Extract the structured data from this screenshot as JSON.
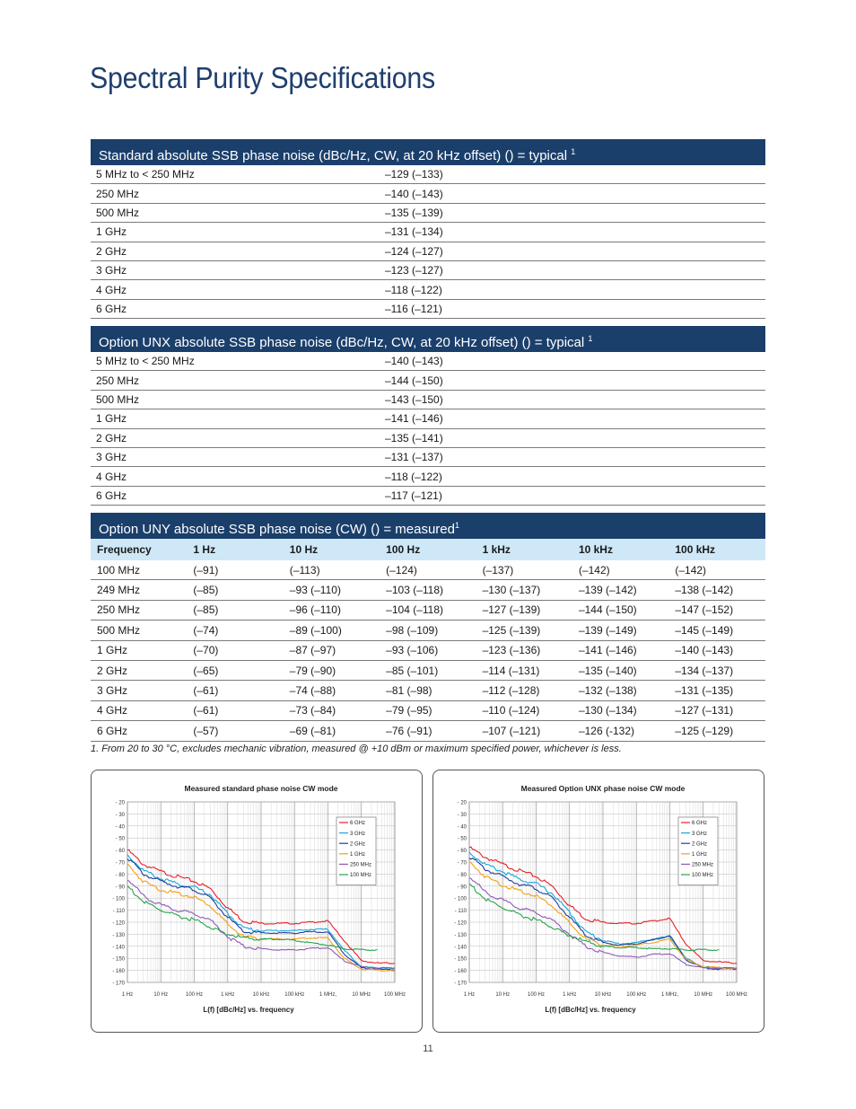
{
  "page_title": "Spectral Purity Specifications",
  "standard": {
    "heading": "Standard absolute SSB phase noise (dBc/Hz, CW, at 20 kHz offset) () = typical",
    "sup": "1",
    "rows": [
      {
        "freq": "5 MHz to < 250 MHz",
        "value": "–129 (–133)"
      },
      {
        "freq": "250 MHz",
        "value": "–140 (–143)"
      },
      {
        "freq": "500 MHz",
        "value": "–135 (–139)"
      },
      {
        "freq": "1 GHz",
        "value": "–131 (–134)"
      },
      {
        "freq": "2 GHz",
        "value": "–124 (–127)"
      },
      {
        "freq": "3 GHz",
        "value": "–123 (–127)"
      },
      {
        "freq": "4 GHz",
        "value": "–118 (–122)"
      },
      {
        "freq": "6 GHz",
        "value": "–116 (–121)"
      }
    ]
  },
  "unx": {
    "heading": "Option UNX absolute SSB phase noise (dBc/Hz, CW, at 20 kHz offset) () = typical",
    "sup": "1",
    "rows": [
      {
        "freq": "5 MHz to < 250 MHz",
        "value": "–140 (–143)"
      },
      {
        "freq": "250 MHz",
        "value": "–144 (–150)"
      },
      {
        "freq": "500 MHz",
        "value": "–143 (–150)"
      },
      {
        "freq": "1 GHz",
        "value": "–141 (–146)"
      },
      {
        "freq": "2 GHz",
        "value": "–135 (–141)"
      },
      {
        "freq": "3 GHz",
        "value": "–131 (–137)"
      },
      {
        "freq": "4 GHz",
        "value": "–118 (–122)"
      },
      {
        "freq": "6 GHz",
        "value": "–117 (–121)"
      }
    ]
  },
  "uny": {
    "heading": "Option UNY absolute SSB phase noise (CW)  () = measured",
    "sup": "1",
    "columns": [
      "Frequency",
      "1 Hz",
      "10 Hz",
      "100 Hz",
      "1 kHz",
      "10 kHz",
      "100 kHz"
    ],
    "rows": [
      [
        "100 MHz",
        "(–91)",
        "(–113)",
        "(–124)",
        "(–137)",
        "(–142)",
        "(–142)"
      ],
      [
        "249 MHz",
        "(–85)",
        "–93 (–110)",
        "–103 (–118)",
        "–130 (–137)",
        "–139 (–142)",
        "–138 (–142)"
      ],
      [
        "250 MHz",
        "(–85)",
        "–96 (–110)",
        "–104 (–118)",
        "–127 (–139)",
        "–144 (–150)",
        "–147 (–152)"
      ],
      [
        "500 MHz",
        "(–74)",
        "–89 (–100)",
        "–98 (–109)",
        "–125 (–139)",
        "–139 (–149)",
        "–145 (–149)"
      ],
      [
        "1 GHz",
        "(–70)",
        "–87 (–97)",
        "–93 (–106)",
        "–123 (–136)",
        "–141 (–146)",
        "–140 (–143)"
      ],
      [
        "2 GHz",
        "(–65)",
        "–79 (–90)",
        "–85 (–101)",
        "–114 (–131)",
        "–135 (–140)",
        "–134 (–137)"
      ],
      [
        "3 GHz",
        "(–61)",
        "–74 (–88)",
        "–81 (–98)",
        "–112 (–128)",
        "–132 (–138)",
        "–131 (–135)"
      ],
      [
        "4 GHz",
        "(–61)",
        "–73 (–84)",
        "–79 (–95)",
        "–110 (–124)",
        "–130 (–134)",
        "–127 (–131)"
      ],
      [
        "6 GHz",
        "(–57)",
        "–69 (–81)",
        "–76 (–91)",
        "–107 (–121)",
        "–126 (-132)",
        "–125 (–129)"
      ]
    ]
  },
  "footnote": "1.   From 20 to 30 °C, excludes mechanic vibration, measured @ +10 dBm or maximum specified power, whichever is less.",
  "page_number": "11",
  "colors": {
    "heading_bg": "#1b3f6b",
    "colhead_bg": "#cfe8f7",
    "title": "#1f3f6e"
  },
  "chart_data": [
    {
      "type": "line",
      "title": "Measured standard phase noise CW mode",
      "xlabel": "L(f) [dBc/Hz] vs. frequency",
      "ylabel": "",
      "x_scale": "log",
      "xlim": [
        1,
        100000000
      ],
      "ylim": [
        -170,
        -20
      ],
      "x_ticks": [
        "1 Hz",
        "10 Hz",
        "100 Hz",
        "1 kHz",
        "10 kHz",
        "100 kHz",
        "1 MHz,",
        "10 MHz",
        "100 MHz"
      ],
      "y_ticks": [
        "- 20",
        "- 30",
        "- 40",
        "- 50",
        "- 60",
        "- 70",
        "- 80",
        "- 90",
        "- 100",
        "- 110",
        "- 120",
        "- 130",
        "- 140",
        "- 150",
        "- 160",
        "- 170"
      ],
      "grid": true,
      "legend_position": "top-right",
      "series": [
        {
          "name": "6 GHz",
          "color": "#e8202a",
          "x": [
            1,
            3,
            10,
            30,
            100,
            300,
            1000,
            3000,
            10000,
            30000,
            100000,
            300000,
            1000000,
            3000000,
            10000000,
            30000000,
            100000000
          ],
          "y": [
            -60,
            -72,
            -78,
            -82,
            -86,
            -92,
            -108,
            -119,
            -121,
            -121,
            -121,
            -120,
            -119,
            -135,
            -152,
            -154,
            -154
          ]
        },
        {
          "name": "3 GHz",
          "color": "#19a7dc",
          "x": [
            1,
            3,
            10,
            30,
            100,
            300,
            1000,
            3000,
            10000,
            30000,
            100000,
            300000,
            1000000,
            3000000,
            10000000,
            30000000,
            100000000
          ],
          "y": [
            -64,
            -77,
            -84,
            -88,
            -91,
            -97,
            -113,
            -125,
            -127,
            -127,
            -127,
            -126,
            -126,
            -143,
            -157,
            -158,
            -159
          ]
        },
        {
          "name": "2 GHz",
          "color": "#1f3f9a",
          "x": [
            1,
            3,
            10,
            30,
            100,
            300,
            1000,
            3000,
            10000,
            30000,
            100000,
            300000,
            1000000,
            3000000,
            10000000,
            30000000,
            100000000
          ],
          "y": [
            -66,
            -80,
            -86,
            -90,
            -93,
            -100,
            -116,
            -128,
            -129,
            -129,
            -129,
            -128,
            -128,
            -146,
            -158,
            -159,
            -160
          ]
        },
        {
          "name": "1 GHz",
          "color": "#f5a012",
          "x": [
            1,
            3,
            10,
            30,
            100,
            300,
            1000,
            3000,
            10000,
            30000,
            100000,
            300000,
            1000000,
            3000000,
            10000000,
            30000000,
            100000000
          ],
          "y": [
            -72,
            -86,
            -93,
            -96,
            -99,
            -106,
            -122,
            -132,
            -134,
            -134,
            -134,
            -133,
            -133,
            -150,
            -159,
            -160,
            -160
          ]
        },
        {
          "name": "250 MHz",
          "color": "#8e5ab8",
          "x": [
            1,
            3,
            10,
            30,
            100,
            300,
            1000,
            3000,
            10000,
            30000,
            100000,
            300000,
            1000000,
            3000000,
            10000000,
            30000000,
            100000000
          ],
          "y": [
            -84,
            -98,
            -106,
            -110,
            -113,
            -118,
            -132,
            -140,
            -142,
            -143,
            -143,
            -142,
            -141,
            -152,
            -157,
            -158,
            -158
          ]
        },
        {
          "name": "100 MHz",
          "color": "#27a34a",
          "x": [
            1,
            3,
            10,
            30,
            100,
            300,
            1000,
            3000,
            10000,
            30000,
            100000,
            300000,
            1000000,
            3000000,
            10000000,
            30000000
          ],
          "y": [
            -90,
            -103,
            -110,
            -115,
            -118,
            -124,
            -130,
            -133,
            -134,
            -134,
            -135,
            -137,
            -139,
            -142,
            -143,
            -143
          ]
        }
      ]
    },
    {
      "type": "line",
      "title": "Measured Option UNX phase noise CW mode",
      "xlabel": "L(f) [dBc/Hz] vs. frequency",
      "ylabel": "",
      "x_scale": "log",
      "xlim": [
        1,
        100000000
      ],
      "ylim": [
        -170,
        -20
      ],
      "x_ticks": [
        "1 Hz",
        "10 Hz",
        "100 Hz",
        "1 kHz",
        "10 kHz",
        "100 kHz",
        "1 MHz,",
        "10 MHz",
        "100 MHz"
      ],
      "y_ticks": [
        "- 20",
        "- 30",
        "- 40",
        "- 50",
        "- 60",
        "- 70",
        "- 80",
        "- 90",
        "- 100",
        "- 110",
        "- 120",
        "- 130",
        "- 140",
        "- 150",
        "- 160",
        "- 170"
      ],
      "grid": true,
      "legend_position": "top-right",
      "series": [
        {
          "name": "6 GHz",
          "color": "#e8202a",
          "x": [
            1,
            3,
            10,
            30,
            100,
            300,
            1000,
            3000,
            10000,
            30000,
            100000,
            300000,
            1000000,
            3000000,
            10000000,
            30000000,
            100000000
          ],
          "y": [
            -58,
            -66,
            -72,
            -77,
            -82,
            -90,
            -106,
            -117,
            -120,
            -121,
            -121,
            -119,
            -117,
            -138,
            -152,
            -153,
            -154
          ]
        },
        {
          "name": "3 GHz",
          "color": "#19a7dc",
          "x": [
            1,
            3,
            10,
            30,
            100,
            300,
            1000,
            3000,
            10000,
            30000,
            100000,
            300000,
            1000000,
            3000000,
            10000000,
            30000000,
            100000000
          ],
          "y": [
            -62,
            -72,
            -78,
            -84,
            -88,
            -96,
            -112,
            -128,
            -135,
            -138,
            -137,
            -134,
            -132,
            -150,
            -157,
            -158,
            -159
          ]
        },
        {
          "name": "2 GHz",
          "color": "#1f3f9a",
          "x": [
            1,
            3,
            10,
            30,
            100,
            300,
            1000,
            3000,
            10000,
            30000,
            100000,
            300000,
            1000000,
            3000000,
            10000000,
            30000000,
            100000000
          ],
          "y": [
            -65,
            -76,
            -82,
            -88,
            -92,
            -100,
            -116,
            -131,
            -137,
            -139,
            -138,
            -135,
            -131,
            -151,
            -158,
            -159,
            -159
          ]
        },
        {
          "name": "1 GHz",
          "color": "#f5a012",
          "x": [
            1,
            3,
            10,
            30,
            100,
            300,
            1000,
            3000,
            10000,
            30000,
            100000,
            300000,
            1000000,
            3000000,
            10000000,
            30000000,
            100000000
          ],
          "y": [
            -70,
            -82,
            -89,
            -94,
            -98,
            -106,
            -121,
            -134,
            -139,
            -140,
            -139,
            -137,
            -134,
            -151,
            -157,
            -158,
            -159
          ]
        },
        {
          "name": "250 MHz",
          "color": "#8e5ab8",
          "x": [
            1,
            3,
            10,
            30,
            100,
            300,
            1000,
            3000,
            10000,
            30000,
            100000,
            300000,
            1000000,
            3000000,
            10000000,
            30000000,
            100000000
          ],
          "y": [
            -82,
            -95,
            -102,
            -108,
            -112,
            -118,
            -130,
            -140,
            -145,
            -148,
            -149,
            -147,
            -146,
            -155,
            -158,
            -158,
            -158
          ]
        },
        {
          "name": "100 MHz",
          "color": "#27a34a",
          "x": [
            1,
            3,
            10,
            30,
            100,
            300,
            1000,
            3000,
            10000,
            30000,
            100000,
            300000,
            1000000,
            3000000,
            10000000,
            30000000
          ],
          "y": [
            -88,
            -101,
            -108,
            -114,
            -118,
            -124,
            -131,
            -136,
            -140,
            -141,
            -141,
            -142,
            -142,
            -143,
            -143,
            -143
          ]
        }
      ]
    }
  ]
}
